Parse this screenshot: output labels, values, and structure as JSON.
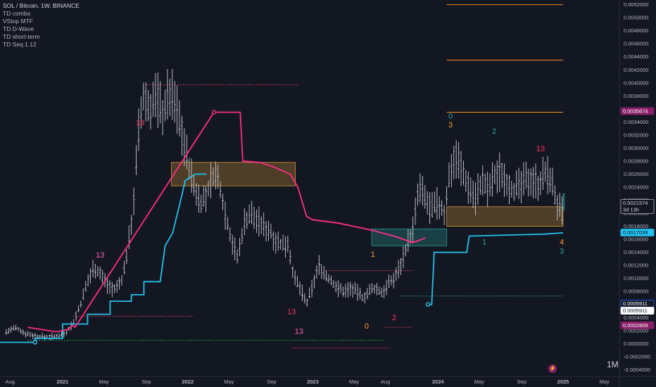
{
  "header": {
    "symbol_line": "SOL / Bitcoin, 1W, BINANCE",
    "indicators": [
      "TD combo",
      "VStop MTF",
      "TD D-Wave",
      "TD short-term",
      "TD Seq 1.12"
    ]
  },
  "interval_label": "1M",
  "icons": {
    "bolt": "lightning-icon"
  },
  "colors": {
    "background": "#131722",
    "bar": "#c9ccd3",
    "vstop_up": "#22c1ee",
    "vstop_down": "#ff2d87",
    "td_red": "#ff3355",
    "td_orange": "#ff9c2a",
    "td_teal": "#26a69a",
    "zone_orange": "#e8a23a",
    "zone_teal": "#2fa89e",
    "grid_level_orange": "#ff8c1a",
    "dash_green": "#2e9e4f",
    "dash_red": "#e0374f"
  },
  "chart_data": {
    "type": "line",
    "title": "SOL / Bitcoin, 1W, BINANCE",
    "x_ticks": [
      {
        "label": "Aug",
        "x": 2020.58
      },
      {
        "label": "2021",
        "x": 2021.0
      },
      {
        "label": "May",
        "x": 2021.33
      },
      {
        "label": "Sep",
        "x": 2021.67
      },
      {
        "label": "2022",
        "x": 2022.0
      },
      {
        "label": "May",
        "x": 2022.33
      },
      {
        "label": "Sep",
        "x": 2022.67
      },
      {
        "label": "2023",
        "x": 2023.0
      },
      {
        "label": "May",
        "x": 2023.33
      },
      {
        "label": "Aug",
        "x": 2023.58
      },
      {
        "label": "2024",
        "x": 2024.0
      },
      {
        "label": "May",
        "x": 2024.33
      },
      {
        "label": "Sep",
        "x": 2024.67
      },
      {
        "label": "2025",
        "x": 2025.0
      },
      {
        "label": "May",
        "x": 2025.33
      }
    ],
    "y_ticks": [
      "0.0052000",
      "0.0050000",
      "0.0048000",
      "0.0046000",
      "0.0044000",
      "0.0042000",
      "0.0040000",
      "0.0038000",
      "0.0036000",
      "0.0034000",
      "0.0032000",
      "0.0030000",
      "0.0028000",
      "0.0026000",
      "0.0024000",
      "0.0022000",
      "0.0020000",
      "0.0018000",
      "0.0016000",
      "0.0014000",
      "0.0012000",
      "0.0010000",
      "0.0008000",
      "0.0006000",
      "0.0004000",
      "0.0002000",
      "0.0000000",
      "-0.0002000",
      "-0.0004000"
    ],
    "ylim": [
      -0.00045,
      0.00525
    ],
    "xlim": [
      2020.5,
      2025.45
    ],
    "price_path": [
      [
        2020.55,
        0.00018
      ],
      [
        2020.62,
        0.00024
      ],
      [
        2020.7,
        0.00016
      ],
      [
        2020.78,
        0.00012
      ],
      [
        2020.86,
        0.0001
      ],
      [
        2020.94,
        0.00011
      ],
      [
        2021.02,
        0.00016
      ],
      [
        2021.08,
        0.0003
      ],
      [
        2021.14,
        0.00058
      ],
      [
        2021.2,
        0.00095
      ],
      [
        2021.25,
        0.00118
      ],
      [
        2021.3,
        0.00108
      ],
      [
        2021.36,
        0.0009
      ],
      [
        2021.42,
        0.00082
      ],
      [
        2021.48,
        0.001
      ],
      [
        2021.52,
        0.00145
      ],
      [
        2021.56,
        0.002
      ],
      [
        2021.61,
        0.0033
      ],
      [
        2021.65,
        0.0038
      ],
      [
        2021.69,
        0.0036
      ],
      [
        2021.75,
        0.0038
      ],
      [
        2021.8,
        0.00355
      ],
      [
        2021.85,
        0.00385
      ],
      [
        2021.9,
        0.0037
      ],
      [
        2021.95,
        0.0033
      ],
      [
        2022.0,
        0.0028
      ],
      [
        2022.05,
        0.0024
      ],
      [
        2022.1,
        0.00218
      ],
      [
        2022.15,
        0.00225
      ],
      [
        2022.2,
        0.0026
      ],
      [
        2022.25,
        0.0025
      ],
      [
        2022.3,
        0.002
      ],
      [
        2022.35,
        0.0016
      ],
      [
        2022.4,
        0.0013
      ],
      [
        2022.45,
        0.00185
      ],
      [
        2022.5,
        0.002
      ],
      [
        2022.55,
        0.0019
      ],
      [
        2022.6,
        0.0018
      ],
      [
        2022.65,
        0.00175
      ],
      [
        2022.7,
        0.0016
      ],
      [
        2022.75,
        0.0015
      ],
      [
        2022.8,
        0.00155
      ],
      [
        2022.85,
        0.001
      ],
      [
        2022.9,
        0.00085
      ],
      [
        2022.95,
        0.0006
      ],
      [
        2023.0,
        0.0009
      ],
      [
        2023.05,
        0.0012
      ],
      [
        2023.1,
        0.00105
      ],
      [
        2023.15,
        0.00095
      ],
      [
        2023.2,
        0.00085
      ],
      [
        2023.25,
        0.0008
      ],
      [
        2023.3,
        0.00085
      ],
      [
        2023.35,
        0.0008
      ],
      [
        2023.4,
        0.0007
      ],
      [
        2023.45,
        0.0008
      ],
      [
        2023.5,
        0.00085
      ],
      [
        2023.55,
        0.00078
      ],
      [
        2023.6,
        0.0009
      ],
      [
        2023.65,
        0.001
      ],
      [
        2023.7,
        0.0012
      ],
      [
        2023.75,
        0.0015
      ],
      [
        2023.8,
        0.00175
      ],
      [
        2023.85,
        0.0024
      ],
      [
        2023.9,
        0.0022
      ],
      [
        2023.95,
        0.00205
      ],
      [
        2024.0,
        0.00215
      ],
      [
        2024.05,
        0.002
      ],
      [
        2024.1,
        0.0027
      ],
      [
        2024.15,
        0.0029
      ],
      [
        2024.2,
        0.0026
      ],
      [
        2024.25,
        0.0024
      ],
      [
        2024.3,
        0.00225
      ],
      [
        2024.35,
        0.0025
      ],
      [
        2024.4,
        0.00235
      ],
      [
        2024.45,
        0.00255
      ],
      [
        2024.5,
        0.00265
      ],
      [
        2024.55,
        0.0025
      ],
      [
        2024.6,
        0.00235
      ],
      [
        2024.65,
        0.0024
      ],
      [
        2024.7,
        0.0025
      ],
      [
        2024.75,
        0.00255
      ],
      [
        2024.8,
        0.00245
      ],
      [
        2024.85,
        0.0026
      ],
      [
        2024.9,
        0.00255
      ],
      [
        2024.95,
        0.00215
      ],
      [
        2024.99,
        0.00198
      ],
      [
        2025.01,
        0.00215
      ]
    ],
    "vstop_cyan": [
      [
        2020.5,
        2e-05
      ],
      [
        2020.78,
        2e-05
      ],
      [
        2020.78,
        8e-05
      ],
      [
        2021.0,
        8e-05
      ],
      [
        2021.0,
        0.0003
      ],
      [
        2021.2,
        0.0003
      ],
      [
        2021.2,
        0.00045
      ],
      [
        2021.38,
        0.00045
      ],
      [
        2021.38,
        0.00065
      ],
      [
        2021.55,
        0.00065
      ],
      [
        2021.55,
        0.00075
      ],
      [
        2021.65,
        0.00075
      ],
      [
        2021.65,
        0.00095
      ],
      [
        2021.78,
        0.00095
      ],
      [
        2021.82,
        0.0015
      ],
      [
        2021.88,
        0.0017
      ],
      [
        2021.95,
        0.00225
      ],
      [
        2021.98,
        0.0025
      ],
      [
        2022.06,
        0.0026
      ],
      [
        2022.15,
        0.0026
      ]
    ],
    "vstop_cyan_2": [
      [
        2023.92,
        0.0006
      ],
      [
        2023.95,
        0.0006
      ],
      [
        2023.97,
        0.0014
      ],
      [
        2024.23,
        0.0014
      ],
      [
        2024.25,
        0.00165
      ],
      [
        2024.85,
        0.00168
      ],
      [
        2025.0,
        0.0017
      ]
    ],
    "vstop_pink": [
      [
        2020.72,
        0.00025
      ],
      [
        2020.95,
        0.00018
      ],
      [
        2021.05,
        0.00022
      ],
      [
        2021.08,
        0.00028
      ],
      [
        2021.1,
        0.00025
      ],
      [
        2022.21,
        0.00355
      ],
      [
        2022.42,
        0.00355
      ],
      [
        2022.44,
        0.0028
      ],
      [
        2022.58,
        0.00278
      ],
      [
        2022.7,
        0.0027
      ],
      [
        2022.82,
        0.0026
      ],
      [
        2022.88,
        0.0024
      ],
      [
        2022.95,
        0.00195
      ],
      [
        2023.0,
        0.0019
      ],
      [
        2023.2,
        0.00185
      ],
      [
        2023.45,
        0.00175
      ],
      [
        2023.65,
        0.00165
      ],
      [
        2023.8,
        0.00155
      ],
      [
        2023.9,
        0.00162
      ]
    ],
    "zones": [
      {
        "color": "orange",
        "x0": 2021.87,
        "x1": 2022.86,
        "y0": 0.00242,
        "y1": 0.00278
      },
      {
        "color": "teal",
        "x0": 2023.47,
        "x1": 2024.07,
        "y0": 0.0015,
        "y1": 0.00176
      },
      {
        "color": "orange",
        "x0": 2024.07,
        "x1": 2025.0,
        "y0": 0.0018,
        "y1": 0.0021
      },
      {
        "color": "teal",
        "x0": 2025.0,
        "x1": 2025.01,
        "y0": 0.00205,
        "y1": 0.0023
      }
    ],
    "orange_levels": [
      {
        "y": 0.0052,
        "x0": 2024.07,
        "x1": 2025.0
      },
      {
        "y": 0.00435,
        "x0": 2024.07,
        "x1": 2025.0
      },
      {
        "y": 0.00355,
        "x0": 2024.07,
        "x1": 2025.0
      }
    ],
    "dashed_levels": [
      {
        "color": "red",
        "y": 0.00397,
        "x0": 2021.67,
        "x1": 2022.89
      },
      {
        "color": "red",
        "y": 0.00042,
        "x0": 2021.08,
        "x1": 2022.05
      },
      {
        "color": "red",
        "y": -7e-05,
        "x0": 2022.83,
        "x1": 2023.62
      },
      {
        "color": "red",
        "y": 0.00112,
        "x0": 2023.1,
        "x1": 2023.8
      },
      {
        "color": "red",
        "y": 0.00025,
        "x0": 2023.58,
        "x1": 2023.79
      },
      {
        "color": "green",
        "y": 5e-05,
        "x0": 2020.72,
        "x1": 2023.58
      },
      {
        "color": "green",
        "y": 0.00073,
        "x0": 2023.7,
        "x1": 2025.0
      }
    ],
    "annotations": [
      {
        "text": "13",
        "x": 2021.62,
        "y": 0.00335,
        "color": "red"
      },
      {
        "text": "13",
        "x": 2021.3,
        "y": 0.00132,
        "color": "pink"
      },
      {
        "text": "13",
        "x": 2022.83,
        "y": 0.00045,
        "color": "red"
      },
      {
        "text": "13",
        "x": 2022.89,
        "y": 0.00015,
        "color": "pink"
      },
      {
        "text": "1",
        "x": 2023.48,
        "y": 0.00133,
        "color": "orange"
      },
      {
        "text": "0",
        "x": 2023.43,
        "y": 0.00023,
        "color": "orange"
      },
      {
        "text": "2",
        "x": 2023.65,
        "y": 0.00036,
        "color": "red"
      },
      {
        "text": "0",
        "x": 2024.1,
        "y": 0.00345,
        "color": "teal"
      },
      {
        "text": "3",
        "x": 2024.1,
        "y": 0.00332,
        "color": "orange"
      },
      {
        "text": "2",
        "x": 2024.45,
        "y": 0.00322,
        "color": "teal"
      },
      {
        "text": "13",
        "x": 2024.82,
        "y": 0.00295,
        "color": "red"
      },
      {
        "text": "1",
        "x": 2024.37,
        "y": 0.00152,
        "color": "teal"
      },
      {
        "text": "4",
        "x": 2024.99,
        "y": 0.00152,
        "color": "orange"
      },
      {
        "text": "3",
        "x": 2024.99,
        "y": 0.00138,
        "color": "teal"
      }
    ],
    "price_tags": [
      {
        "value": "0.0035674",
        "style": "pink_fill"
      },
      {
        "value": "0.0021574",
        "style": "gray_outline",
        "sub": "3d 13h"
      },
      {
        "value": "0.0017039",
        "style": "cyan_fill"
      },
      {
        "value": "0.0005911",
        "style": "blue_outline"
      },
      {
        "value": "0.0005911",
        "style": "white_fill"
      },
      {
        "value": "0.0002809",
        "style": "pink_fill"
      }
    ]
  }
}
